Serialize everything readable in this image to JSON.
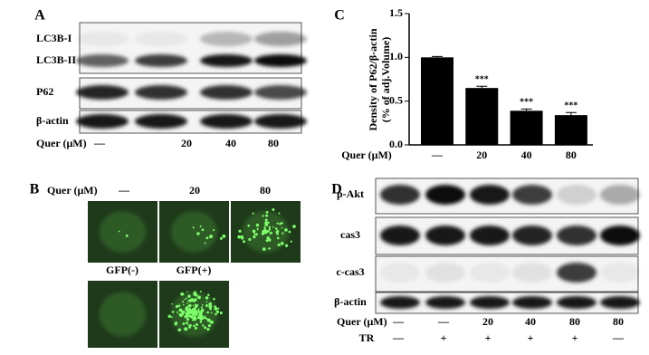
{
  "panel_a": {
    "label": "A",
    "rows": [
      "LC3B-I",
      "LC3B-II",
      "P62",
      "β-actin"
    ],
    "dose_label": "Quer (μM)",
    "lanes": [
      "—",
      "20",
      "40",
      "80"
    ]
  },
  "panel_b": {
    "label": "B",
    "dose_label": "Quer (μM)",
    "lanes": [
      "—",
      "20",
      "80"
    ],
    "gfp_labels": [
      "GFP(-)",
      "GFP(+)"
    ]
  },
  "chart_data": {
    "type": "bar",
    "panel_label": "C",
    "y_label": "Density of P62/β-actin",
    "y_label_2": "(% of adj.Volume)",
    "x_label": "Quer (μM)",
    "categories": [
      "—",
      "20",
      "40",
      "80"
    ],
    "values": [
      1.0,
      0.65,
      0.39,
      0.34
    ],
    "errors": [
      0.01,
      0.02,
      0.02,
      0.03
    ],
    "significance": [
      null,
      "***",
      "***",
      "***"
    ],
    "color": "#000000",
    "ylim": [
      0,
      1.5
    ],
    "yticks": [
      {
        "value": 0,
        "label": "0.0"
      },
      {
        "value": 0.5,
        "label": "0.5"
      },
      {
        "value": 1,
        "label": "1.0"
      },
      {
        "value": 1.5,
        "label": "1.5"
      }
    ]
  },
  "panel_d": {
    "label": "D",
    "rows": [
      "p-Akt",
      "cas3",
      "c-cas3",
      "β-actin"
    ],
    "dose_label": "Quer (μM)",
    "dose_lanes": [
      "—",
      "—",
      "20",
      "40",
      "80",
      "80"
    ],
    "tr_label": "TR",
    "tr_lanes": [
      "—",
      "+",
      "+",
      "+",
      "+",
      "—"
    ]
  }
}
